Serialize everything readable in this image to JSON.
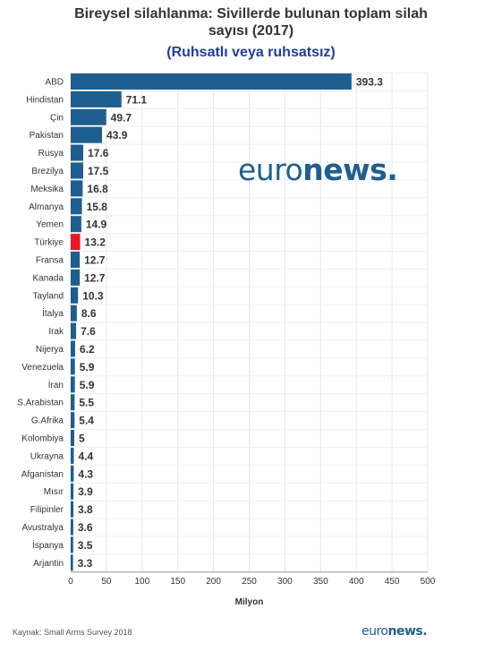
{
  "title_line1": "Bireysel silahlanma: Sivillerde bulunan toplam silah",
  "title_line2": "sayısı (2017)",
  "subtitle": "(Ruhsatlı veya ruhsatsız)",
  "source": "Kaynak: Small Arms Survey 2018",
  "brand": {
    "euro": "euro",
    "news": "news",
    "dot": "."
  },
  "colors": {
    "bar": "#1e5f8f",
    "highlight": "#e8171f",
    "grid": "#e6e6e6",
    "axis": "#333333"
  },
  "chart_data": {
    "type": "bar",
    "orientation": "horizontal",
    "categories": [
      "ABD",
      "Hindistan",
      "Çin",
      "Pakistan",
      "Rusya",
      "Brezilya",
      "Meksika",
      "Almanya",
      "Yemen",
      "Türkiye",
      "Fransa",
      "Kanada",
      "Tayland",
      "İtalya",
      "Irak",
      "Nijerya",
      "Venezuela",
      "İran",
      "S.Arabistan",
      "G.Afrika",
      "Kolombiya",
      "Ukrayna",
      "Afganistan",
      "Mısır",
      "Filipinler",
      "Avustralya",
      "İspanya",
      "Arjantin"
    ],
    "values": [
      393.3,
      71.1,
      49.7,
      43.9,
      17.6,
      17.5,
      16.8,
      15.8,
      14.9,
      13.2,
      12.7,
      12.7,
      10.3,
      8.6,
      7.6,
      6.2,
      5.9,
      5.9,
      5.5,
      5.4,
      5,
      4.4,
      4.3,
      3.9,
      3.8,
      3.6,
      3.5,
      3.3
    ],
    "value_labels": [
      "393.3",
      "71.1",
      "49.7",
      "43.9",
      "17.6",
      "17.5",
      "16.8",
      "15.8",
      "14.9",
      "13.2",
      "12.7",
      "12.7",
      "10.3",
      "8.6",
      "7.6",
      "6.2",
      "5.9",
      "5.9",
      "5.5",
      "5.4",
      "5",
      "4.4",
      "4.3",
      "3.9",
      "3.8",
      "3.6",
      "3.5",
      "3.3"
    ],
    "highlight": "Türkiye",
    "xlabel": "Milyon",
    "xlim": [
      0,
      500
    ],
    "xticks": [
      0,
      50,
      100,
      150,
      200,
      250,
      300,
      350,
      400,
      450,
      500
    ],
    "grid": true
  }
}
